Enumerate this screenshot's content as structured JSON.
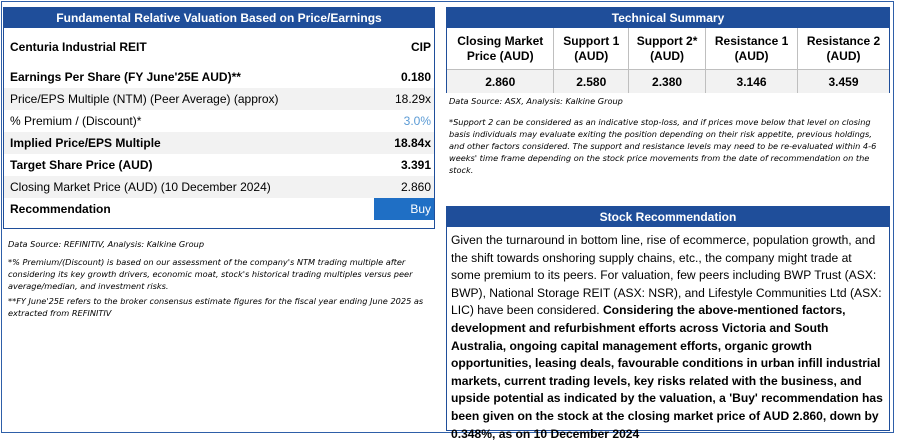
{
  "valuation": {
    "title": "Fundamental Relative Valuation Based on Price/Earnings",
    "company": "Centuria Industrial REIT",
    "ticker": "CIP",
    "rows": [
      {
        "label": "Earnings Per Share (FY June'25E AUD)**",
        "value": "0.180"
      },
      {
        "label": "Price/EPS Multiple (NTM) (Peer Average) (approx)",
        "value": "18.29x"
      },
      {
        "label": "% Premium / (Discount)*",
        "value": "3.0%"
      },
      {
        "label": "Implied Price/EPS Multiple",
        "value": "18.84x"
      },
      {
        "label": "Target Share Price (AUD)",
        "value": "3.391"
      },
      {
        "label": "Closing Market Price (AUD) (10 December 2024)",
        "value": "2.860"
      },
      {
        "label": "Recommendation",
        "value": "Buy"
      }
    ],
    "source": "Data Source: REFINITIV, Analysis: Kalkine Group",
    "note1": "*% Premium/(Discount) is based on our assessment of the company's NTM trading multiple after considering its key growth drivers, economic moat, stock's historical trading multiples versus peer average/median, and investment risks.",
    "note2": "**FY June'25E refers to the broker consensus estimate figures for the fiscal year ending June 2025 as extracted from REFINITIV"
  },
  "technical": {
    "title": "Technical Summary",
    "headers": [
      "Closing Market Price (AUD)",
      "Support 1 (AUD)",
      "Support 2* (AUD)",
      "Resistance 1 (AUD)",
      "Resistance 2 (AUD)"
    ],
    "values": [
      "2.860",
      "2.580",
      "2.380",
      "3.146",
      "3.459"
    ],
    "source": "Data Source: ASX, Analysis: Kalkine Group",
    "note": "*Support 2 can be considered as an indicative stop-loss, and if prices move below that level on closing basis individuals may evaluate exiting the position depending on their risk appetite, previous holdings, and other factors considered. The support and resistance levels may need to be re-evaluated within 4-6 weeks' time frame depending on the stock price movements from the date of recommendation on the stock."
  },
  "recommendation": {
    "title": "Stock Recommendation",
    "text_regular": "Given the turnaround in bottom line, rise of ecommerce, population growth, and the shift towards onshoring supply chains, etc., the company might trade at some premium to its peers. For valuation, few peers including BWP Trust (ASX: BWP), National Storage REIT (ASX: NSR), and Lifestyle Communities Ltd (ASX: LIC) have been considered. ",
    "text_bold": "Considering the above-mentioned factors, development and refurbishment efforts across Victoria and South Australia, ongoing capital management efforts, organic growth opportunities, leasing deals, favourable conditions in urban infill industrial markets, current trading levels, key risks related with the business, and upside potential as indicated by the valuation, a 'Buy' recommendation has been given on the stock at the closing market price of AUD 2.860, down by 0.348%, as on 10 December 2024"
  },
  "colors": {
    "header": "#1F4E9A",
    "recommendation_cell": "#1F6FC5",
    "premium_text": "#5B9BD5",
    "shade": "#F2F2F2"
  }
}
